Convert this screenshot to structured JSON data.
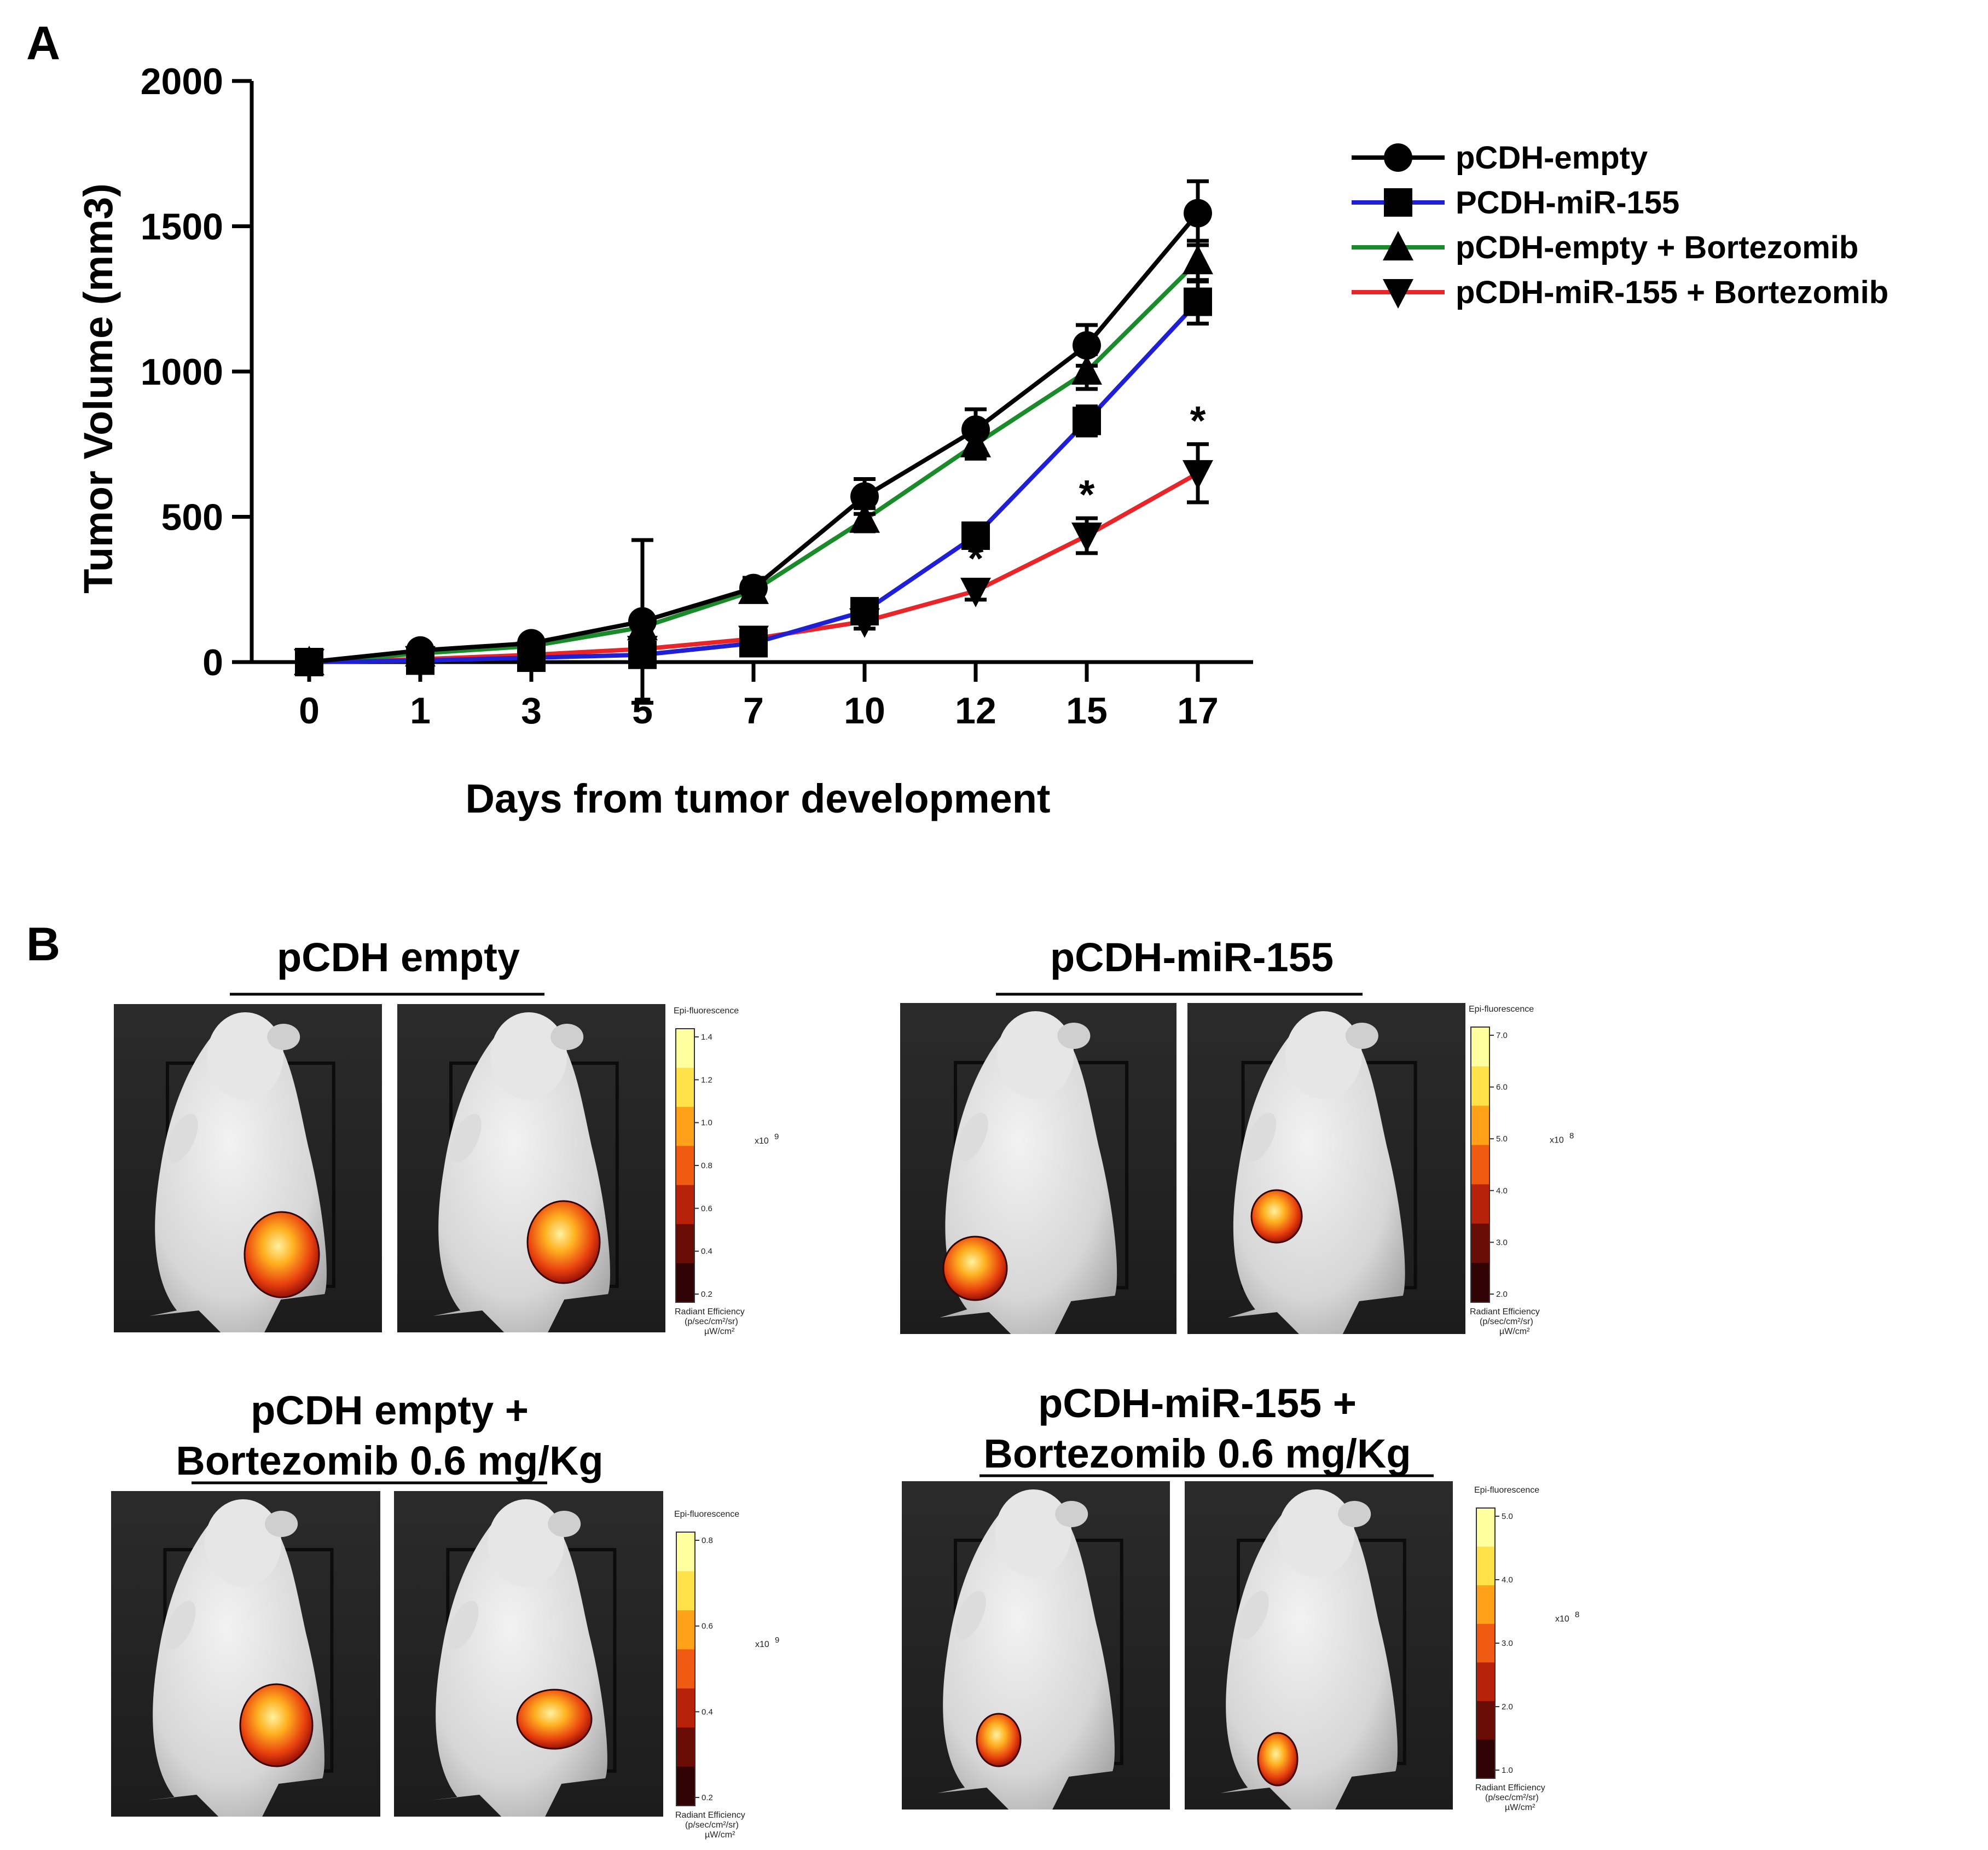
{
  "panels": {
    "a_label": "A",
    "b_label": "B"
  },
  "chart_data": {
    "type": "line",
    "title": "",
    "xlabel": "Days from tumor development",
    "ylabel": "Tumor Volume (mm3)",
    "categories": [
      "0",
      "1",
      "3",
      "5",
      "7",
      "10",
      "12",
      "15",
      "17"
    ],
    "ylim": [
      0,
      2000
    ],
    "yticks": [
      "0",
      "500",
      "1000",
      "1500",
      "2000"
    ],
    "x_scale": "categorical (equally spaced)",
    "legend_position": "right",
    "series": [
      {
        "name": "pCDH-empty",
        "color": "#000000",
        "marker": "circle",
        "values": [
          0,
          40,
          65,
          140,
          255,
          570,
          800,
          1090,
          1545
        ],
        "errors": [
          0,
          15,
          15,
          280,
          35,
          60,
          70,
          70,
          110
        ]
      },
      {
        "name": "PCDH-miR-155",
        "color": "#1f1fd6",
        "marker": "square",
        "values": [
          0,
          5,
          15,
          25,
          65,
          175,
          435,
          830,
          1240
        ],
        "errors": [
          0,
          5,
          10,
          15,
          20,
          30,
          40,
          50,
          75
        ]
      },
      {
        "name": "pCDH-empty + Bortezomib",
        "color": "#1a8a2a",
        "marker": "triangle-up",
        "values": [
          0,
          30,
          55,
          120,
          245,
          490,
          750,
          1000,
          1380
        ],
        "errors": [
          0,
          10,
          15,
          20,
          25,
          40,
          50,
          60,
          70
        ]
      },
      {
        "name": "pCDH-miR-155 + Bortezomib",
        "color": "#e8262a",
        "marker": "triangle-down",
        "values": [
          0,
          10,
          25,
          45,
          80,
          140,
          245,
          435,
          650
        ],
        "errors": [
          0,
          5,
          10,
          15,
          20,
          25,
          30,
          60,
          100
        ]
      }
    ],
    "annotations": [
      {
        "x": "12",
        "series": "pCDH-miR-155 + Bortezomib",
        "text": "*"
      },
      {
        "x": "15",
        "series": "pCDH-miR-155 + Bortezomib",
        "text": "*"
      },
      {
        "x": "17",
        "series": "pCDH-miR-155 + Bortezomib",
        "text": "*"
      }
    ]
  },
  "imaging": {
    "colormap": [
      "#ffffa0",
      "#ffe24a",
      "#ffa21a",
      "#f05a12",
      "#b8220a",
      "#6a0c06",
      "#300404"
    ],
    "groups": [
      {
        "title": "pCDH empty",
        "title_line2": "",
        "colorbar_header": "Epi-fluorescence",
        "ticks": [
          "1.4",
          "1.2",
          "1.0",
          "0.8",
          "0.6",
          "0.4",
          "0.2"
        ],
        "multiplier": "x10",
        "exponent": "9",
        "footer1": "Radiant Efficiency",
        "footer2": "(p/sec/cm²/sr)",
        "footer3": "µW/cm²"
      },
      {
        "title": "pCDH-miR-155",
        "title_line2": "",
        "colorbar_header": "Epi-fluorescence",
        "ticks": [
          "7.0",
          "6.0",
          "5.0",
          "4.0",
          "3.0",
          "2.0"
        ],
        "multiplier": "x10",
        "exponent": "8",
        "footer1": "Radiant Efficiency",
        "footer2": "(p/sec/cm²/sr)",
        "footer3": "µW/cm²"
      },
      {
        "title": "pCDH empty +",
        "title_line2": "Bortezomib 0.6 mg/Kg",
        "colorbar_header": "Epi-fluorescence",
        "ticks": [
          "0.8",
          "0.6",
          "0.4",
          "0.2"
        ],
        "multiplier": "x10",
        "exponent": "9",
        "footer1": "Radiant Efficiency",
        "footer2": "(p/sec/cm²/sr)",
        "footer3": "µW/cm²"
      },
      {
        "title": "pCDH-miR-155 +",
        "title_line2": "Bortezomib 0.6 mg/Kg",
        "colorbar_header": "Epi-fluorescence",
        "ticks": [
          "5.0",
          "4.0",
          "3.0",
          "2.0",
          "1.0"
        ],
        "multiplier": "x10",
        "exponent": "8",
        "footer1": "Radiant Efficiency",
        "footer2": "(p/sec/cm²/sr)",
        "footer3": "µW/cm²"
      }
    ]
  }
}
